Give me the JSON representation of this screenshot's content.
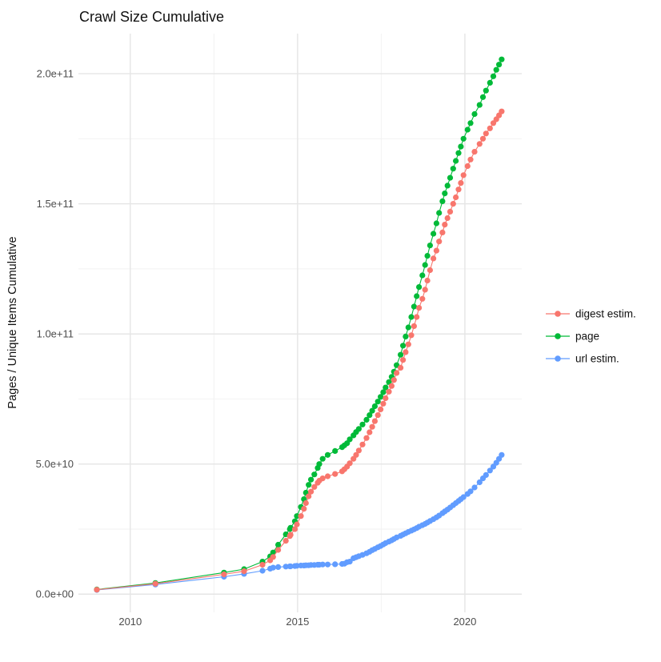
{
  "chart_data": {
    "type": "line",
    "title": "Crawl Size Cumulative",
    "xlabel": "",
    "ylabel": "Pages / Unique Items Cumulative",
    "y_unit": "1e9 (values below are billions of pages / unique items)",
    "legend_position": "right",
    "grid": true,
    "x_domain": [
      2008.45,
      2021.7
    ],
    "y_domain_e9": [
      -7,
      215.4
    ],
    "x_ticks": [
      {
        "value": 2010,
        "label": "2010"
      },
      {
        "value": 2015,
        "label": "2015"
      },
      {
        "value": 2020,
        "label": "2020"
      }
    ],
    "x_minor": [
      2012.5,
      2017.5
    ],
    "y_ticks": [
      {
        "value": 0,
        "label": "0.0e+00"
      },
      {
        "value": 50,
        "label": "5.0e+10"
      },
      {
        "value": 100,
        "label": "1.0e+11"
      },
      {
        "value": 150,
        "label": "1.5e+11"
      },
      {
        "value": 200,
        "label": "2.0e+11"
      }
    ],
    "y_minor": [
      25,
      75,
      125,
      175
    ],
    "x": [
      2009.0,
      2010.75,
      2012.8,
      2013.4,
      2013.95,
      2014.18,
      2014.27,
      2014.42,
      2014.65,
      2014.77,
      2014.79,
      2014.92,
      2014.98,
      2015.1,
      2015.19,
      2015.25,
      2015.33,
      2015.4,
      2015.5,
      2015.6,
      2015.65,
      2015.75,
      2015.9,
      2016.12,
      2016.33,
      2016.4,
      2016.48,
      2016.56,
      2016.67,
      2016.75,
      2016.83,
      2016.94,
      2017.06,
      2017.15,
      2017.23,
      2017.31,
      2017.4,
      2017.48,
      2017.56,
      2017.63,
      2017.73,
      2017.81,
      2017.88,
      2017.96,
      2018.08,
      2018.15,
      2018.23,
      2018.31,
      2018.4,
      2018.48,
      2018.56,
      2018.63,
      2018.73,
      2018.81,
      2018.88,
      2018.96,
      2019.06,
      2019.15,
      2019.23,
      2019.33,
      2019.4,
      2019.48,
      2019.56,
      2019.65,
      2019.73,
      2019.81,
      2019.88,
      2019.96,
      2020.08,
      2020.17,
      2020.29,
      2020.44,
      2020.54,
      2020.63,
      2020.75,
      2020.85,
      2020.94,
      2021.02,
      2021.1
    ],
    "series": [
      {
        "name": "digest estim.",
        "color": "#F8766D",
        "values": [
          1.7,
          4.0,
          7.6,
          8.8,
          11.3,
          13,
          14.3,
          17,
          20.5,
          22.3,
          22.8,
          25,
          26.8,
          30,
          32.8,
          35,
          37.6,
          39.4,
          41.2,
          42.8,
          43.6,
          44.5,
          45.3,
          46.2,
          47.2,
          48,
          49,
          50.3,
          52,
          53.5,
          55.2,
          57.5,
          60,
          62.2,
          64.3,
          66.5,
          68.8,
          71,
          73.2,
          75.3,
          77.8,
          80,
          82.3,
          85,
          87,
          90,
          93,
          96,
          99.5,
          103,
          106.5,
          110,
          113.5,
          117,
          120.5,
          124.5,
          129,
          132,
          135.5,
          139,
          142,
          144.5,
          147,
          150,
          152.5,
          155.5,
          158,
          161,
          164.5,
          167,
          170,
          173,
          175,
          177,
          179,
          181,
          182.5,
          184,
          185.5
        ]
      },
      {
        "name": "page",
        "color": "#00BA38",
        "values": [
          1.8,
          4.3,
          8.3,
          9.6,
          12.5,
          14.5,
          16,
          19,
          23,
          25,
          25.5,
          28,
          30,
          33.5,
          36.5,
          39,
          42,
          44,
          46,
          48.5,
          50,
          52,
          53.5,
          55,
          56.5,
          57.2,
          58,
          59.5,
          61,
          62.3,
          63.5,
          65.2,
          67,
          68.8,
          70.5,
          72.2,
          74,
          75.8,
          77.6,
          79.4,
          81.5,
          83.5,
          85.5,
          88,
          92,
          95.5,
          99,
          102.5,
          106.5,
          110.5,
          114.5,
          118,
          122.5,
          126.5,
          130,
          134,
          138.5,
          142.5,
          146.5,
          151,
          154,
          157,
          160,
          163.5,
          166.5,
          169.5,
          172,
          175,
          178.5,
          181,
          184.5,
          188,
          191,
          193.5,
          196.5,
          199,
          201.5,
          203.5,
          205.5
        ]
      },
      {
        "name": "url estim.",
        "color": "#619CFF",
        "values": [
          1.6,
          3.7,
          6.7,
          7.8,
          9.0,
          9.8,
          10.2,
          10.4,
          10.6,
          10.7,
          10.7,
          10.8,
          10.9,
          11.0,
          11.0,
          11.1,
          11.1,
          11.2,
          11.2,
          11.3,
          11.3,
          11.4,
          11.4,
          11.5,
          11.6,
          11.7,
          12.3,
          12.5,
          13.8,
          14.2,
          14.6,
          15.1,
          15.7,
          16.3,
          16.9,
          17.4,
          18.0,
          18.5,
          19.1,
          19.6,
          20.2,
          20.7,
          21.2,
          21.8,
          22.4,
          22.9,
          23.4,
          23.9,
          24.4,
          24.9,
          25.4,
          25.9,
          26.5,
          27.0,
          27.5,
          28.1,
          28.8,
          29.5,
          30.2,
          31.1,
          31.8,
          32.5,
          33.3,
          34.2,
          35.0,
          35.8,
          36.5,
          37.3,
          38.5,
          39.5,
          41.0,
          43.0,
          44.5,
          45.8,
          47.5,
          49.0,
          50.5,
          52.0,
          53.5
        ]
      }
    ],
    "colors": {
      "grid_major": "#e5e5e5",
      "grid_minor": "#f2f2f2",
      "tick_text": "#4d4d4d",
      "title_text": "#111111"
    }
  }
}
